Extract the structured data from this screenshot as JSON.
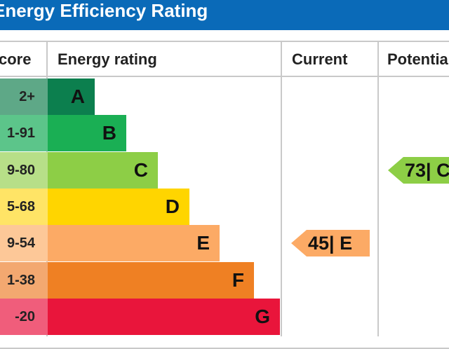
{
  "header": {
    "title": "Energy Efficiency Rating"
  },
  "columns": {
    "score": "core",
    "rating": "Energy rating",
    "current": "Current",
    "potential": "Potentia"
  },
  "chart_data": {
    "type": "bar",
    "title": "Energy Efficiency Rating",
    "categories": [
      "A",
      "B",
      "C",
      "D",
      "E",
      "F",
      "G"
    ],
    "score_ranges": [
      "2+",
      "1-91",
      "9-80",
      "5-68",
      "9-54",
      "1-38",
      "-20"
    ],
    "band_colors": [
      "#0c7f4e",
      "#1aaf54",
      "#8dce46",
      "#ffd500",
      "#fcaa65",
      "#ef8023",
      "#e9153b"
    ],
    "score_colors": [
      "#5ea887",
      "#5cc58a",
      "#b7df88",
      "#ffe466",
      "#fdc898",
      "#f3a870",
      "#f05d7b"
    ],
    "current": {
      "value": 45,
      "band": "E",
      "label": "45| E",
      "color": "#fcaa65"
    },
    "potential": {
      "value": 73,
      "band": "C",
      "label": "73| C",
      "color": "#8dce46"
    }
  }
}
